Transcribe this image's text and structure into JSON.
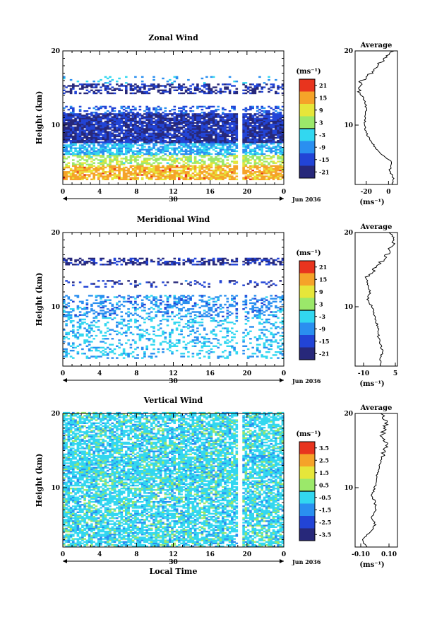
{
  "chart_data": [
    {
      "type": "heatmap",
      "title": "Zonal Wind",
      "ylabel": "Height (km)",
      "xlabel": "",
      "x_ticks": [
        "0",
        "4",
        "8",
        "12",
        "16",
        "20",
        "0"
      ],
      "xlim": [
        0,
        24
      ],
      "y_ticks": [
        "20",
        "10"
      ],
      "ylim": [
        2,
        20
      ],
      "day_label": "30",
      "date_label": "Jun 2036",
      "colorbar": {
        "unit_label": "(ms⁻¹)",
        "ticks": [
          "21",
          "15",
          "9",
          "3",
          "-3",
          "-9",
          "-15",
          "-21"
        ],
        "range": [
          -24,
          24
        ]
      },
      "profile": {
        "title": "Average",
        "x_ticks": [
          "-20",
          "0"
        ],
        "xlim": [
          -30,
          8
        ],
        "xlabel": "(ms⁻¹)",
        "y_ticks": [
          "20",
          "10"
        ],
        "heights": [
          2,
          3,
          4,
          5,
          6,
          7,
          8,
          9,
          10,
          11,
          12,
          13,
          14,
          15,
          16,
          17,
          18,
          19,
          20
        ],
        "values": [
          4,
          4,
          1,
          3,
          -6,
          -12,
          -17,
          -20,
          -22,
          -21,
          -20,
          -21,
          -24,
          -27,
          -24,
          -16,
          -10,
          -3,
          5
        ]
      },
      "layers": [
        {
          "z0": 2.5,
          "z1": 4.5,
          "mean": 14,
          "cov": 0.75
        },
        {
          "z0": 4.5,
          "z1": 6.0,
          "mean": 4,
          "cov": 0.55
        },
        {
          "z0": 6.0,
          "z1": 7.5,
          "mean": -6,
          "cov": 0.7
        },
        {
          "z0": 7.5,
          "z1": 11.5,
          "mean": -18,
          "cov": 0.9
        },
        {
          "z0": 11.5,
          "z1": 12.5,
          "mean": -13,
          "cov": 0.4
        },
        {
          "z0": 14.0,
          "z1": 15.5,
          "mean": -19,
          "cov": 0.45
        },
        {
          "z0": 15.5,
          "z1": 16.5,
          "mean": -6,
          "cov": 0.1
        }
      ]
    },
    {
      "type": "heatmap",
      "title": "Meridional Wind",
      "ylabel": "Height (km)",
      "xlabel": "",
      "x_ticks": [
        "0",
        "4",
        "8",
        "12",
        "16",
        "20",
        "0"
      ],
      "xlim": [
        0,
        24
      ],
      "y_ticks": [
        "20",
        "10"
      ],
      "ylim": [
        2,
        20
      ],
      "day_label": "30",
      "date_label": "Jun 2036",
      "colorbar": {
        "unit_label": "(ms⁻¹)",
        "ticks": [
          "21",
          "15",
          "9",
          "3",
          "-3",
          "-9",
          "-15",
          "-21"
        ],
        "range": [
          -24,
          24
        ]
      },
      "profile": {
        "title": "Average",
        "x_ticks": [
          "-10",
          "5"
        ],
        "xlim": [
          -14,
          6
        ],
        "xlabel": "(ms⁻¹)",
        "y_ticks": [
          "20",
          "10"
        ],
        "heights": [
          2,
          3,
          4,
          5,
          6,
          7,
          8,
          9,
          10,
          11,
          12,
          13,
          14,
          15,
          16,
          17,
          18,
          19,
          20
        ],
        "values": [
          -2,
          -2,
          -1,
          -2,
          -3,
          -3,
          -4,
          -5,
          -6,
          -8,
          -7,
          -8,
          -9,
          -5,
          -2,
          1,
          3,
          4,
          2
        ]
      },
      "layers": [
        {
          "z0": 3.0,
          "z1": 8.5,
          "mean": -5,
          "cov": 0.25
        },
        {
          "z0": 8.5,
          "z1": 11.5,
          "mean": -9,
          "cov": 0.35
        },
        {
          "z0": 12.5,
          "z1": 13.5,
          "mean": -16,
          "cov": 0.2
        },
        {
          "z0": 15.5,
          "z1": 16.5,
          "mean": -19,
          "cov": 0.5
        }
      ]
    },
    {
      "type": "heatmap",
      "title": "Vertical Wind",
      "ylabel": "Height (km)",
      "xlabel": "Local Time",
      "x_ticks": [
        "0",
        "4",
        "8",
        "12",
        "16",
        "20",
        "0"
      ],
      "xlim": [
        0,
        24
      ],
      "y_ticks": [
        "20",
        "10"
      ],
      "ylim": [
        2,
        20
      ],
      "day_label": "30",
      "date_label": "Jun 2036",
      "colorbar": {
        "unit_label": "(ms⁻¹)",
        "ticks": [
          "3.5",
          "2.5",
          "1.5",
          "0.5",
          "-0.5",
          "-1.5",
          "-2.5",
          "-3.5"
        ],
        "range": [
          -4,
          4
        ]
      },
      "profile": {
        "title": "Average",
        "x_ticks": [
          "-0.10",
          "0.10"
        ],
        "xlim": [
          -0.14,
          0.16
        ],
        "xlabel": "(ms⁻¹)",
        "y_ticks": [
          "20",
          "10"
        ],
        "heights": [
          2,
          3,
          4,
          5,
          6,
          7,
          8,
          9,
          10,
          11,
          12,
          13,
          14,
          15,
          16,
          17,
          18,
          19,
          20
        ],
        "values": [
          -0.06,
          -0.09,
          -0.03,
          0.0,
          -0.02,
          0.01,
          0.0,
          -0.02,
          0.0,
          0.01,
          0.02,
          0.03,
          0.05,
          0.06,
          0.09,
          0.05,
          0.07,
          0.08,
          0.04
        ]
      },
      "layers": [
        {
          "z0": 2.0,
          "z1": 11.0,
          "mean": -0.5,
          "cov": 0.7
        },
        {
          "z0": 11.0,
          "z1": 14.0,
          "mean": -0.5,
          "cov": 0.8
        },
        {
          "z0": 14.0,
          "z1": 20.0,
          "mean": -0.5,
          "cov": 0.7
        }
      ]
    }
  ]
}
